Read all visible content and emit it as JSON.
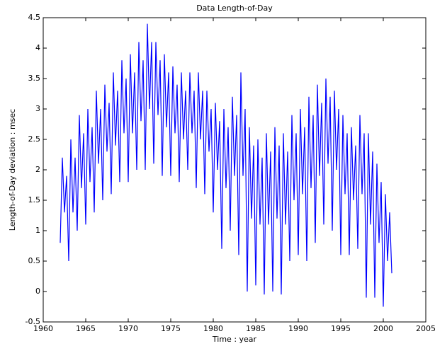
{
  "chart_data": {
    "type": "line",
    "title": "Data Length-of-Day",
    "x_label": "Time : year",
    "y_label": "Length-of-Day deviation : msec",
    "xlim": [
      1960,
      2005
    ],
    "xticks": [
      1960,
      1965,
      1970,
      1975,
      1980,
      1985,
      1990,
      1995,
      2000,
      2005
    ],
    "ylim": [
      -0.5,
      4.5
    ],
    "yticks": [
      -0.5,
      0,
      0.5,
      1,
      1.5,
      2,
      2.5,
      3,
      3.5,
      4,
      4.5
    ],
    "x": [
      1962,
      1962.25,
      1962.5,
      1962.75,
      1963,
      1963.25,
      1963.5,
      1963.75,
      1964,
      1964.25,
      1964.5,
      1964.75,
      1965,
      1965.25,
      1965.5,
      1965.75,
      1966,
      1966.25,
      1966.5,
      1966.75,
      1967,
      1967.25,
      1967.5,
      1967.75,
      1968,
      1968.25,
      1968.5,
      1968.75,
      1969,
      1969.25,
      1969.5,
      1969.75,
      1970,
      1970.25,
      1970.5,
      1970.75,
      1971,
      1971.25,
      1971.5,
      1971.75,
      1972,
      1972.25,
      1972.5,
      1972.75,
      1973,
      1973.25,
      1973.5,
      1973.75,
      1974,
      1974.25,
      1974.5,
      1974.75,
      1975,
      1975.25,
      1975.5,
      1975.75,
      1976,
      1976.25,
      1976.5,
      1976.75,
      1977,
      1977.25,
      1977.5,
      1977.75,
      1978,
      1978.25,
      1978.5,
      1978.75,
      1979,
      1979.25,
      1979.5,
      1979.75,
      1980,
      1980.25,
      1980.5,
      1980.75,
      1981,
      1981.25,
      1981.5,
      1981.75,
      1982,
      1982.25,
      1982.5,
      1982.75,
      1983,
      1983.25,
      1983.5,
      1983.75,
      1984,
      1984.25,
      1984.5,
      1984.75,
      1985,
      1985.25,
      1985.5,
      1985.75,
      1986,
      1986.25,
      1986.5,
      1986.75,
      1987,
      1987.25,
      1987.5,
      1987.75,
      1988,
      1988.25,
      1988.5,
      1988.75,
      1989,
      1989.25,
      1989.5,
      1989.75,
      1990,
      1990.25,
      1990.5,
      1990.75,
      1991,
      1991.25,
      1991.5,
      1991.75,
      1992,
      1992.25,
      1992.5,
      1992.75,
      1993,
      1993.25,
      1993.5,
      1993.75,
      1994,
      1994.25,
      1994.5,
      1994.75,
      1995,
      1995.25,
      1995.5,
      1995.75,
      1996,
      1996.25,
      1996.5,
      1996.75,
      1997,
      1997.25,
      1997.5,
      1997.75,
      1998,
      1998.25,
      1998.5,
      1998.75,
      1999,
      1999.25,
      1999.5,
      1999.75,
      2000,
      2000.25,
      2000.5,
      2000.75,
      2001
    ],
    "series": [
      {
        "color": "#0000ff",
        "values": [
          0.8,
          2.2,
          1.3,
          1.9,
          0.5,
          2.5,
          1.3,
          2.2,
          1.0,
          2.9,
          1.7,
          2.6,
          1.1,
          3.0,
          1.8,
          2.7,
          1.3,
          3.3,
          2.1,
          3.0,
          1.5,
          3.4,
          2.3,
          3.1,
          1.6,
          3.6,
          2.4,
          3.3,
          1.8,
          3.8,
          2.6,
          3.5,
          1.8,
          3.9,
          2.6,
          3.6,
          2.0,
          4.1,
          2.8,
          3.8,
          2.0,
          4.4,
          3.0,
          4.1,
          2.1,
          4.1,
          2.9,
          3.8,
          1.9,
          3.9,
          2.7,
          3.6,
          1.9,
          3.7,
          2.6,
          3.4,
          1.8,
          3.6,
          2.5,
          3.3,
          2.0,
          3.6,
          2.6,
          3.3,
          1.7,
          3.6,
          2.5,
          3.3,
          1.6,
          3.3,
          2.3,
          3.0,
          1.3,
          3.1,
          2.0,
          2.8,
          0.7,
          3.0,
          1.7,
          2.7,
          1.0,
          3.2,
          1.9,
          2.9,
          0.6,
          3.6,
          1.9,
          3.0,
          0.0,
          2.7,
          1.2,
          2.4,
          0.1,
          2.5,
          1.1,
          2.2,
          -0.05,
          2.6,
          1.1,
          2.3,
          0.0,
          2.7,
          1.2,
          2.4,
          -0.05,
          2.6,
          1.1,
          2.3,
          0.5,
          2.9,
          1.5,
          2.6,
          0.6,
          3.0,
          1.6,
          2.7,
          0.5,
          3.2,
          1.7,
          2.9,
          0.8,
          3.4,
          1.9,
          3.1,
          1.1,
          3.5,
          2.1,
          3.2,
          1.0,
          3.3,
          2.0,
          3.0,
          0.6,
          2.9,
          1.6,
          2.6,
          0.6,
          2.7,
          1.5,
          2.4,
          0.7,
          2.9,
          1.6,
          2.6,
          -0.1,
          2.6,
          1.1,
          2.3,
          -0.1,
          2.1,
          0.8,
          1.8,
          -0.25,
          1.6,
          0.5,
          1.3,
          0.3
        ]
      }
    ]
  }
}
